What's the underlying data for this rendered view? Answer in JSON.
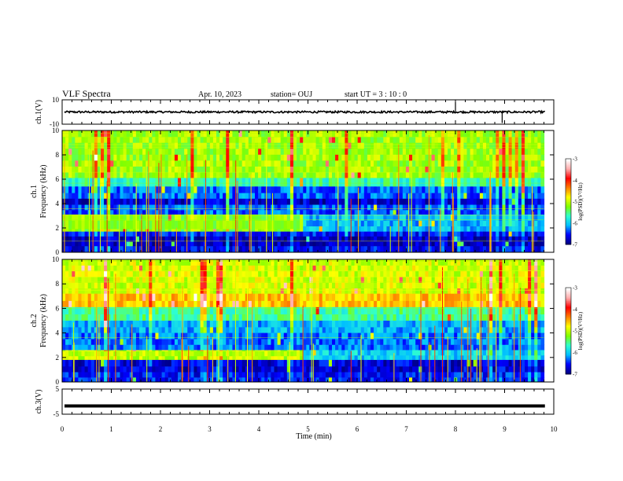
{
  "header": {
    "title": "VLF Spectra",
    "date": "Apr. 10, 2023",
    "station": "station= OUJ",
    "start_ut": "start  UT  =  3 : 10 : 0"
  },
  "colors": {
    "colormap": [
      "#00007f",
      "#0000ff",
      "#00bfff",
      "#2fffcf",
      "#7fff00",
      "#ffff00",
      "#ff7f00",
      "#ff0000",
      "#ffaaaa",
      "#ffffff"
    ],
    "background_black": "#000000",
    "waveform": "#000000"
  },
  "chart_data": [
    {
      "id": "ch1_waveform",
      "type": "line",
      "ylabel": "ch.1(V)",
      "ylim": [
        -10,
        10
      ],
      "yticks": [
        "10",
        "-10"
      ],
      "xlim": [
        0,
        10
      ],
      "baseline": 0,
      "spikes": [
        {
          "x": 8.0,
          "y": 8
        },
        {
          "x": 8.95,
          "y": -9
        }
      ]
    },
    {
      "id": "ch1_spectrogram",
      "type": "heatmap",
      "ylabel": "ch.1\nFrequency (kHz)",
      "ylim": [
        0,
        10
      ],
      "yticks": [
        "0",
        "2",
        "4",
        "6",
        "8",
        "10"
      ],
      "xlim": [
        0,
        10
      ],
      "data_end_min": 9.8,
      "colorbar": {
        "label": "log(PSD)(V²/Hz)",
        "range": [
          -7,
          -3
        ],
        "ticks": [
          "-3",
          "-4",
          "-5",
          "-6",
          "-7"
        ]
      },
      "bands": [
        {
          "f0": 6.1,
          "f1": 10.0,
          "level": 0.47
        },
        {
          "f0": 5.4,
          "f1": 6.1,
          "level": 0.34
        },
        {
          "f0": 4.4,
          "f1": 5.4,
          "level": 0.17
        },
        {
          "f0": 3.9,
          "f1": 4.4,
          "level": 0.07
        },
        {
          "f0": 3.1,
          "f1": 3.9,
          "level": 0.16
        },
        {
          "f0": 1.7,
          "f1": 3.1,
          "level": 0.23
        },
        {
          "f0": 1.3,
          "f1": 1.7,
          "level": 0.12
        },
        {
          "f0": 0.5,
          "f1": 1.3,
          "level": 0.05
        },
        {
          "f0": 0.0,
          "f1": 0.5,
          "level": 0.1
        }
      ],
      "features": [
        {
          "f0": 1.9,
          "f1": 2.6,
          "t0": 0.0,
          "t1": 4.85,
          "level": 0.45
        }
      ]
    },
    {
      "id": "ch2_spectrogram",
      "type": "heatmap",
      "ylabel": "ch.2\nFrequency (kHz)",
      "ylim": [
        0,
        10
      ],
      "yticks": [
        "0",
        "2",
        "4",
        "6",
        "8",
        "10"
      ],
      "xlim": [
        0,
        10
      ],
      "data_end_min": 9.8,
      "colorbar": {
        "label": "log(PSD)(V²/Hz)",
        "range": [
          -7,
          -3
        ],
        "ticks": [
          "-3",
          "-4",
          "-5",
          "-6",
          "-7"
        ]
      },
      "bands": [
        {
          "f0": 7.2,
          "f1": 10.0,
          "level": 0.52
        },
        {
          "f0": 6.1,
          "f1": 7.2,
          "level": 0.6
        },
        {
          "f0": 5.0,
          "f1": 6.1,
          "level": 0.36
        },
        {
          "f0": 4.0,
          "f1": 5.0,
          "level": 0.22
        },
        {
          "f0": 2.6,
          "f1": 4.0,
          "level": 0.18
        },
        {
          "f0": 1.8,
          "f1": 2.6,
          "level": 0.26
        },
        {
          "f0": 0.8,
          "f1": 1.8,
          "level": 0.08
        },
        {
          "f0": 0.0,
          "f1": 0.8,
          "level": 0.12
        }
      ],
      "features": [
        {
          "f0": 2.1,
          "f1": 2.5,
          "t0": 0.0,
          "t1": 4.85,
          "level": 0.5
        }
      ]
    },
    {
      "id": "ch3_waveform",
      "type": "line",
      "ylabel": "ch.3(V)",
      "ylim": [
        -5,
        5
      ],
      "yticks": [
        "5",
        "-5"
      ],
      "xlim": [
        0,
        10
      ],
      "baseline": -1.7
    }
  ],
  "xaxis": {
    "label": "Time (min)",
    "ticks": [
      "0",
      "1",
      "2",
      "3",
      "4",
      "5",
      "6",
      "7",
      "8",
      "9",
      "10"
    ]
  }
}
